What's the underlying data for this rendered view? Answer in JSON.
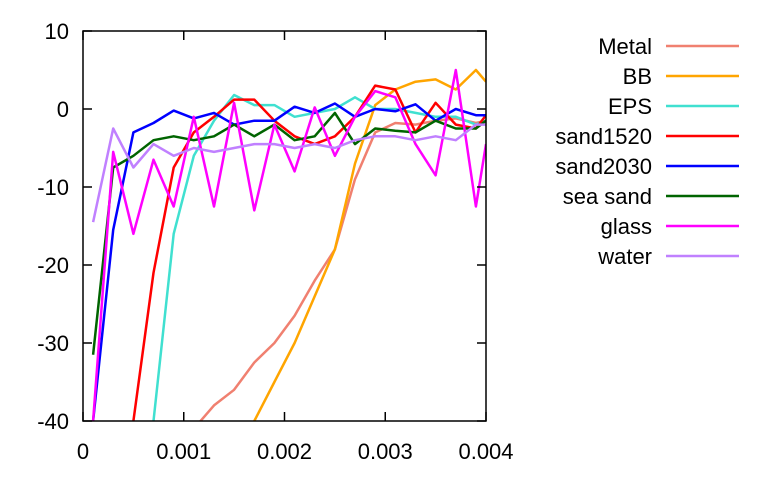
{
  "chart_data": {
    "type": "line",
    "title": "",
    "xlabel": "",
    "ylabel": "",
    "xlim": [
      0,
      0.004
    ],
    "ylim": [
      -40,
      10
    ],
    "x_ticks": [
      {
        "value": 0,
        "label": "0"
      },
      {
        "value": 0.001,
        "label": "0.001"
      },
      {
        "value": 0.002,
        "label": "0.002"
      },
      {
        "value": 0.003,
        "label": "0.003"
      },
      {
        "value": 0.004,
        "label": "0.004"
      }
    ],
    "y_ticks": [
      {
        "value": 10,
        "label": "10"
      },
      {
        "value": 0,
        "label": "0"
      },
      {
        "value": -10,
        "label": "-10"
      },
      {
        "value": -20,
        "label": "-20"
      },
      {
        "value": -30,
        "label": "-30"
      },
      {
        "value": -40,
        "label": "-40"
      }
    ],
    "grid": false,
    "legend_position": "right",
    "series": [
      {
        "name": "Metal",
        "color": "#f08070",
        "x": [
          0.0011,
          0.0013,
          0.0015,
          0.0017,
          0.0019,
          0.0021,
          0.0023,
          0.0025,
          0.0027,
          0.0029,
          0.0031,
          0.0033,
          0.0035,
          0.0037,
          0.0039,
          0.004
        ],
        "y": [
          -41,
          -38,
          -36,
          -32.5,
          -30,
          -26.5,
          -22,
          -18,
          -9,
          -3,
          -1.8,
          -2,
          -1.5,
          -1.2,
          -1.8,
          -1.5
        ]
      },
      {
        "name": "BB",
        "color": "#ffa500",
        "x": [
          0.0017,
          0.0019,
          0.0021,
          0.0023,
          0.0025,
          0.0027,
          0.0029,
          0.0031,
          0.0033,
          0.0035,
          0.0037,
          0.0039,
          0.004
        ],
        "y": [
          -40,
          -35,
          -30,
          -24,
          -18,
          -7,
          0.5,
          2.5,
          3.5,
          3.8,
          2.5,
          5,
          3.5
        ]
      },
      {
        "name": "EPS",
        "color": "#40e0d0",
        "x": [
          0.0007,
          0.0009,
          0.0011,
          0.0013,
          0.0015,
          0.0017,
          0.0019,
          0.0021,
          0.0023,
          0.0025,
          0.0027,
          0.0029,
          0.0031,
          0.0033,
          0.0035,
          0.0037,
          0.0039,
          0.004
        ],
        "y": [
          -40,
          -16,
          -6,
          -1.5,
          1.8,
          0.5,
          0.5,
          -1,
          -0.5,
          0,
          1.5,
          0,
          0,
          -0.5,
          -1,
          -1,
          -2,
          -1.5
        ]
      },
      {
        "name": "sand1520",
        "color": "#ff0000",
        "x": [
          0.0005,
          0.0007,
          0.0009,
          0.0011,
          0.0013,
          0.0015,
          0.0017,
          0.0019,
          0.0021,
          0.0023,
          0.0025,
          0.0027,
          0.0029,
          0.0031,
          0.0033,
          0.0035,
          0.0037,
          0.0039,
          0.004
        ],
        "y": [
          -40,
          -21,
          -7.5,
          -3,
          -1,
          1.2,
          1.2,
          -1.5,
          -3.5,
          -4.5,
          -3.5,
          -1,
          3,
          2.5,
          -3,
          0.8,
          -2,
          -2.5,
          -0.8
        ]
      },
      {
        "name": "sand2030",
        "color": "#0000ff",
        "x": [
          0.0001,
          0.0003,
          0.0005,
          0.0007,
          0.0009,
          0.0011,
          0.0013,
          0.0015,
          0.0017,
          0.0019,
          0.0021,
          0.0023,
          0.0025,
          0.0027,
          0.0029,
          0.0031,
          0.0033,
          0.0035,
          0.0037,
          0.0039,
          0.004
        ],
        "y": [
          -40,
          -15.5,
          -3,
          -1.8,
          -0.2,
          -1.2,
          -0.5,
          -2,
          -1.5,
          -1.5,
          0.3,
          -0.5,
          0.7,
          -1,
          0,
          -0.3,
          0.6,
          -1.5,
          0,
          -0.8,
          -0.8
        ]
      },
      {
        "name": "sea sand",
        "color": "#006400",
        "x": [
          0.0001,
          0.0003,
          0.0005,
          0.0007,
          0.0009,
          0.0011,
          0.0013,
          0.0015,
          0.0017,
          0.0019,
          0.0021,
          0.0023,
          0.0025,
          0.0027,
          0.0029,
          0.0031,
          0.0033,
          0.0035,
          0.0037,
          0.0039,
          0.004
        ],
        "y": [
          -31.5,
          -7.5,
          -6,
          -4,
          -3.5,
          -4,
          -3.5,
          -2,
          -3.5,
          -2,
          -4,
          -3.5,
          -0.5,
          -4.5,
          -2.5,
          -2.8,
          -3,
          -1.5,
          -2.5,
          -2.5,
          -1.5
        ]
      },
      {
        "name": "glass",
        "color": "#ff00ff",
        "x": [
          0.0001,
          0.0003,
          0.0005,
          0.0007,
          0.0009,
          0.0011,
          0.0013,
          0.0015,
          0.0017,
          0.0019,
          0.0021,
          0.0023,
          0.0025,
          0.0027,
          0.0029,
          0.0031,
          0.0033,
          0.0035,
          0.0037,
          0.0039,
          0.004
        ],
        "y": [
          -40,
          -5.5,
          -16,
          -6.5,
          -12.5,
          -1,
          -12.5,
          0.8,
          -13,
          -2,
          -8,
          0.2,
          -6,
          -1,
          2.3,
          1.5,
          -4.5,
          -8.5,
          5,
          -12.5,
          -4.5
        ]
      },
      {
        "name": "water",
        "color": "#c080ff",
        "x": [
          0.0001,
          0.0003,
          0.0005,
          0.0007,
          0.0009,
          0.0011,
          0.0013,
          0.0015,
          0.0017,
          0.0019,
          0.0021,
          0.0023,
          0.0025,
          0.0027,
          0.0029,
          0.0031,
          0.0033,
          0.0035,
          0.0037,
          0.0039,
          0.004
        ],
        "y": [
          -14.5,
          -2.5,
          -7.5,
          -4.5,
          -6,
          -5,
          -5.5,
          -5,
          -4.5,
          -4.5,
          -5,
          -4.5,
          -5,
          -4,
          -3.5,
          -3.5,
          -4,
          -3.5,
          -4,
          -2,
          -2
        ]
      }
    ]
  }
}
